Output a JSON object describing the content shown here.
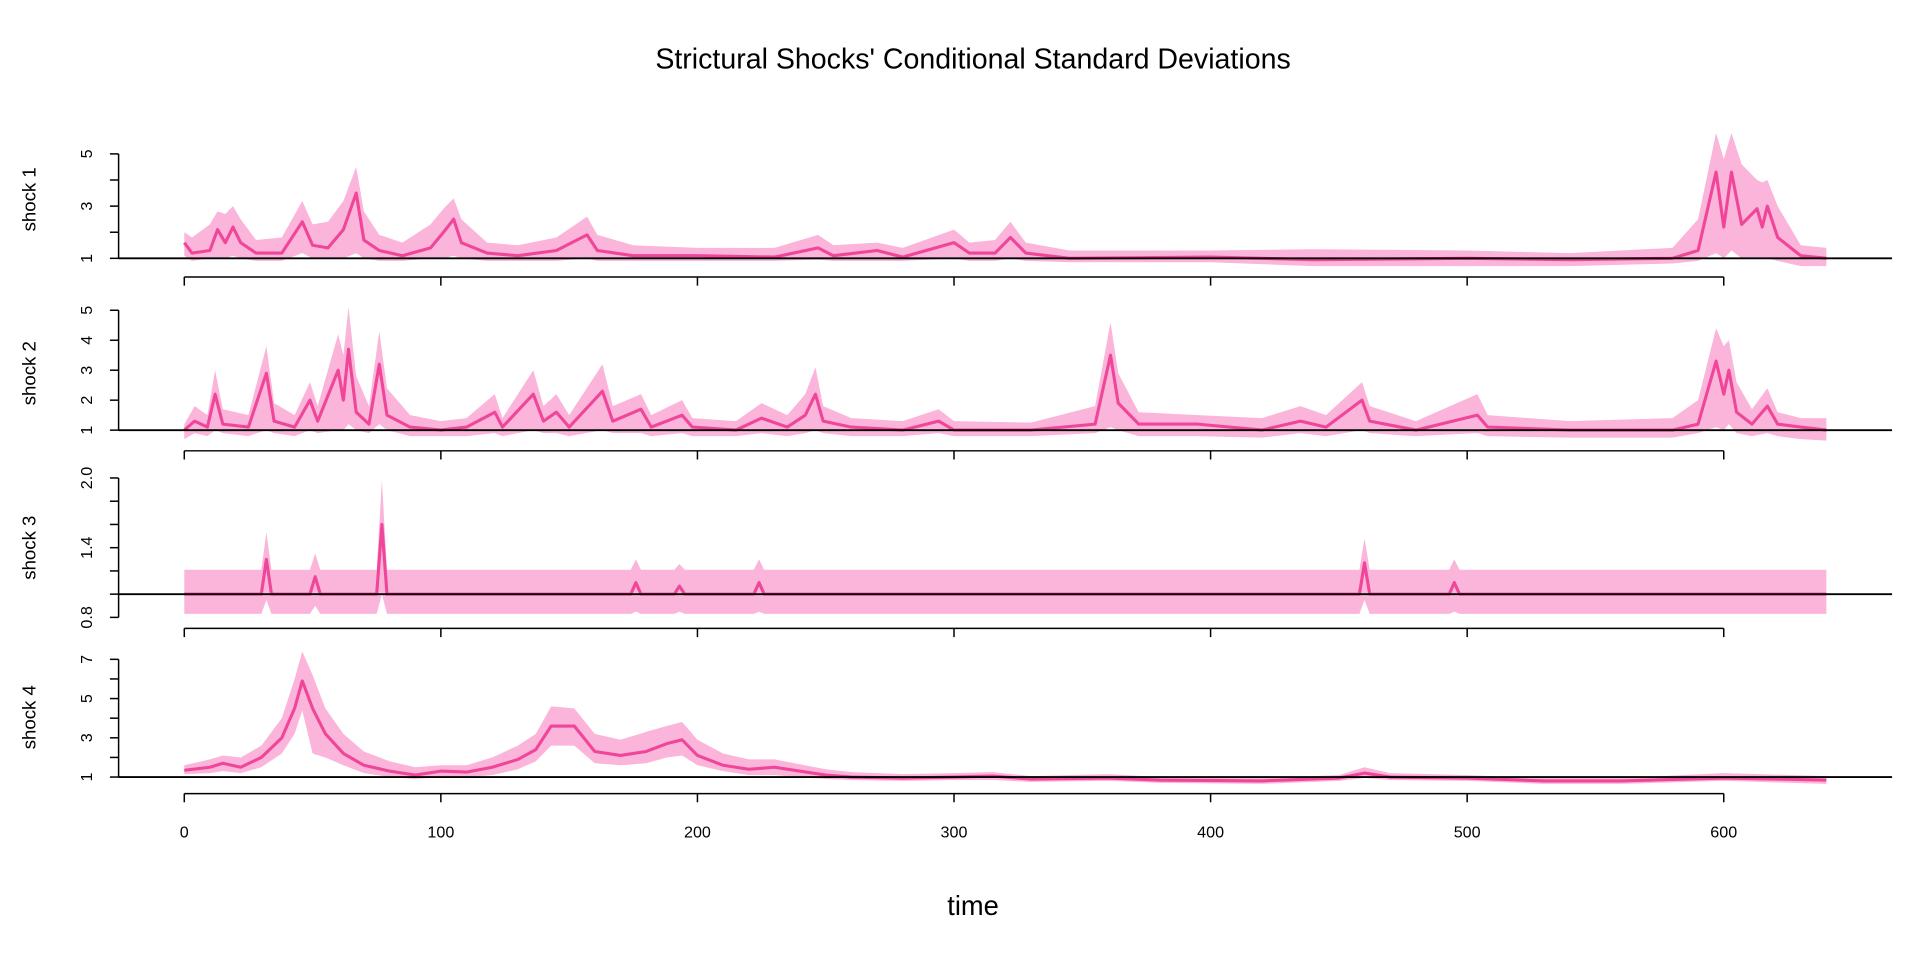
{
  "chart_data": [
    {
      "type": "line",
      "title": "Strictural Shocks' Conditional Standard Deviations",
      "ylabel": "shock 1",
      "x": [
        0,
        3,
        10,
        13,
        16,
        19,
        22,
        28,
        38,
        46,
        50,
        56,
        62,
        67,
        70,
        76,
        85,
        96,
        101,
        105,
        108,
        118,
        130,
        145,
        157,
        161,
        175,
        200,
        230,
        247,
        253,
        270,
        280,
        300,
        306,
        316,
        322,
        328,
        345,
        400,
        440,
        500,
        540,
        580,
        590,
        597,
        600,
        603,
        607,
        613,
        615,
        617,
        621,
        630,
        640
      ],
      "series": [
        {
          "color": "#f0469a",
          "band_color": "#fbb4da",
          "values": [
            1.6,
            1.2,
            1.3,
            2.1,
            1.6,
            2.2,
            1.6,
            1.2,
            1.2,
            2.4,
            1.5,
            1.4,
            2.1,
            3.5,
            1.7,
            1.3,
            1.1,
            1.4,
            2.0,
            2.5,
            1.6,
            1.2,
            1.1,
            1.3,
            1.9,
            1.3,
            1.1,
            1.1,
            1.05,
            1.4,
            1.1,
            1.3,
            1.05,
            1.6,
            1.2,
            1.2,
            1.8,
            1.2,
            1.0,
            1.05,
            0.95,
            1.0,
            0.95,
            1.0,
            1.3,
            4.3,
            2.2,
            4.3,
            2.3,
            2.9,
            2.2,
            3.0,
            1.8,
            1.1,
            1.0
          ],
          "lower": [
            1.1,
            0.9,
            1.0,
            1.0,
            1.0,
            1.1,
            1.0,
            0.9,
            0.9,
            1.2,
            1.0,
            1.0,
            1.0,
            1.2,
            1.0,
            0.9,
            0.9,
            1.0,
            1.0,
            1.1,
            1.0,
            0.9,
            0.9,
            0.9,
            1.0,
            0.9,
            0.9,
            0.9,
            0.9,
            0.95,
            0.9,
            0.9,
            0.9,
            1.0,
            0.9,
            0.9,
            1.0,
            0.9,
            0.85,
            0.85,
            0.7,
            0.7,
            0.7,
            0.8,
            0.9,
            1.2,
            1.0,
            1.3,
            1.0,
            1.0,
            1.0,
            1.0,
            0.9,
            0.7,
            0.7
          ],
          "upper": [
            2.0,
            1.8,
            2.3,
            2.8,
            2.7,
            3.0,
            2.5,
            1.7,
            1.8,
            3.2,
            2.3,
            2.4,
            3.2,
            4.5,
            2.8,
            1.9,
            1.6,
            2.3,
            2.9,
            3.3,
            2.5,
            1.6,
            1.5,
            1.8,
            2.6,
            1.9,
            1.5,
            1.4,
            1.4,
            1.9,
            1.5,
            1.6,
            1.4,
            2.1,
            1.6,
            1.7,
            2.4,
            1.6,
            1.3,
            1.3,
            1.35,
            1.3,
            1.2,
            1.4,
            2.5,
            5.8,
            4.8,
            5.8,
            4.6,
            4.0,
            3.9,
            4.0,
            3.0,
            1.5,
            1.4
          ]
        }
      ],
      "xlim": [
        -25.6,
        665.6
      ],
      "xticks": [
        0,
        100,
        200,
        300,
        400,
        500,
        600
      ],
      "ylim": [
        0.62,
        5.9
      ],
      "yticks": [
        1,
        3,
        5
      ],
      "minor_yticks": [
        2,
        4
      ],
      "hline": 1
    },
    {
      "type": "line",
      "ylabel": "shock 2",
      "x": [
        0,
        4,
        9,
        12,
        15,
        25,
        32,
        35,
        43,
        49,
        52,
        60,
        62,
        64,
        67,
        72,
        76,
        79,
        88,
        100,
        110,
        121,
        124,
        136,
        140,
        145,
        150,
        163,
        167,
        178,
        182,
        194,
        198,
        215,
        225,
        235,
        242,
        246,
        249,
        260,
        280,
        294,
        300,
        330,
        355,
        361,
        364,
        372,
        395,
        420,
        435,
        445,
        459,
        462,
        480,
        504,
        508,
        540,
        580,
        590,
        597,
        600,
        602,
        605,
        611,
        617,
        621,
        630,
        640
      ],
      "series": [
        {
          "color": "#f0469a",
          "band_color": "#fbb4da",
          "values": [
            1.0,
            1.3,
            1.1,
            2.2,
            1.2,
            1.1,
            2.9,
            1.3,
            1.1,
            2.0,
            1.3,
            3.0,
            2.0,
            3.7,
            1.6,
            1.2,
            3.2,
            1.5,
            1.1,
            1.0,
            1.1,
            1.6,
            1.1,
            2.2,
            1.3,
            1.6,
            1.1,
            2.3,
            1.3,
            1.7,
            1.1,
            1.5,
            1.1,
            1.0,
            1.4,
            1.1,
            1.5,
            2.2,
            1.3,
            1.1,
            1.0,
            1.3,
            1.0,
            1.0,
            1.2,
            3.5,
            1.9,
            1.2,
            1.2,
            1.0,
            1.3,
            1.1,
            2.0,
            1.3,
            1.0,
            1.5,
            1.1,
            1.0,
            1.0,
            1.2,
            3.3,
            2.2,
            3.0,
            1.6,
            1.2,
            1.8,
            1.2,
            1.1,
            1.0
          ],
          "lower": [
            0.7,
            0.9,
            0.8,
            1.0,
            0.9,
            0.8,
            1.0,
            0.9,
            0.8,
            1.0,
            0.9,
            1.0,
            1.0,
            1.2,
            1.0,
            0.9,
            1.2,
            1.0,
            0.8,
            0.8,
            0.8,
            0.9,
            0.8,
            1.0,
            0.9,
            0.9,
            0.8,
            1.0,
            0.9,
            0.9,
            0.8,
            0.9,
            0.8,
            0.8,
            0.9,
            0.8,
            0.9,
            1.0,
            0.9,
            0.8,
            0.8,
            0.9,
            0.8,
            0.8,
            0.9,
            1.1,
            1.0,
            0.8,
            0.8,
            0.75,
            0.9,
            0.8,
            1.0,
            0.9,
            0.8,
            0.9,
            0.8,
            0.75,
            0.75,
            0.9,
            1.1,
            1.0,
            1.2,
            0.9,
            0.8,
            0.9,
            0.8,
            0.7,
            0.65
          ],
          "upper": [
            1.2,
            1.8,
            1.5,
            3.0,
            1.7,
            1.5,
            3.8,
            1.9,
            1.5,
            2.6,
            1.8,
            4.2,
            3.5,
            5.1,
            2.8,
            1.8,
            4.3,
            2.4,
            1.5,
            1.3,
            1.4,
            2.2,
            1.4,
            3.0,
            1.8,
            2.2,
            1.5,
            3.2,
            1.8,
            2.2,
            1.5,
            2.0,
            1.4,
            1.3,
            1.9,
            1.5,
            2.2,
            3.1,
            1.8,
            1.4,
            1.3,
            1.7,
            1.3,
            1.25,
            1.8,
            4.6,
            2.9,
            1.6,
            1.5,
            1.4,
            1.8,
            1.5,
            2.6,
            1.8,
            1.3,
            2.2,
            1.5,
            1.3,
            1.4,
            2.0,
            4.4,
            3.8,
            4.0,
            2.6,
            1.7,
            2.4,
            1.6,
            1.4,
            1.4
          ]
        }
      ],
      "xlim": [
        -25.6,
        665.6
      ],
      "xticks": [
        0,
        100,
        200,
        300,
        400,
        500,
        600
      ],
      "ylim": [
        0.6,
        5.2
      ],
      "yticks": [
        1,
        2,
        3,
        4,
        5
      ],
      "minor_yticks": [],
      "hline": 1
    },
    {
      "type": "line",
      "ylabel": "shock 3",
      "x": [
        0,
        30,
        32,
        34,
        49,
        51,
        53,
        75,
        77,
        79,
        174,
        176,
        178,
        191,
        193,
        195,
        222,
        224,
        226,
        458,
        460,
        462,
        493,
        495,
        497,
        640
      ],
      "series": [
        {
          "color": "#f0469a",
          "band_color": "#fbb4da",
          "values": [
            1.0,
            1.0,
            1.3,
            1.0,
            1.0,
            1.15,
            1.0,
            1.0,
            1.6,
            1.0,
            1.0,
            1.1,
            1.0,
            1.0,
            1.07,
            1.0,
            1.0,
            1.1,
            1.0,
            1.0,
            1.27,
            1.0,
            1.0,
            1.1,
            1.0,
            1.0
          ],
          "lower": [
            0.83,
            0.83,
            0.95,
            0.83,
            0.83,
            0.9,
            0.83,
            0.83,
            1.0,
            0.83,
            0.83,
            0.85,
            0.83,
            0.83,
            0.85,
            0.83,
            0.83,
            0.85,
            0.83,
            0.83,
            0.95,
            0.83,
            0.83,
            0.85,
            0.83,
            0.83
          ],
          "upper": [
            1.21,
            1.21,
            1.53,
            1.21,
            1.21,
            1.35,
            1.21,
            1.21,
            1.98,
            1.21,
            1.21,
            1.3,
            1.21,
            1.21,
            1.26,
            1.21,
            1.21,
            1.3,
            1.21,
            1.21,
            1.48,
            1.21,
            1.21,
            1.3,
            1.21,
            1.21
          ]
        }
      ],
      "xlim": [
        -25.6,
        665.6
      ],
      "xticks": [
        0,
        100,
        200,
        300,
        400,
        500,
        600
      ],
      "ylim": [
        0.78,
        2.02
      ],
      "yticks": [
        {
          "value": 0.8,
          "label": "0.8"
        },
        {
          "value": 1.4,
          "label": "1.4"
        },
        {
          "value": 2.0,
          "label": "2.0"
        }
      ],
      "minor_yticks": [
        1.0,
        1.2,
        1.6,
        1.8
      ],
      "hline": 1
    },
    {
      "type": "line",
      "ylabel": "shock 4",
      "xlabel": "time",
      "xtick_labels": true,
      "x": [
        0,
        10,
        15,
        22,
        30,
        38,
        43,
        46,
        50,
        55,
        62,
        70,
        80,
        90,
        100,
        110,
        120,
        130,
        137,
        143,
        152,
        160,
        170,
        180,
        188,
        194,
        200,
        210,
        220,
        230,
        250,
        260,
        280,
        300,
        315,
        330,
        360,
        380,
        420,
        450,
        460,
        470,
        500,
        530,
        560,
        600,
        640
      ],
      "series": [
        {
          "color": "#f0469a",
          "band_color": "#fbb4da",
          "values": [
            1.35,
            1.5,
            1.7,
            1.5,
            2.0,
            3.0,
            4.5,
            5.9,
            4.5,
            3.2,
            2.2,
            1.6,
            1.3,
            1.1,
            1.3,
            1.25,
            1.5,
            1.9,
            2.4,
            3.6,
            3.6,
            2.3,
            2.1,
            2.3,
            2.7,
            2.9,
            2.1,
            1.6,
            1.4,
            1.5,
            1.1,
            1.0,
            0.95,
            1.0,
            1.05,
            0.9,
            0.95,
            0.85,
            0.8,
            0.95,
            1.2,
            1.0,
            0.95,
            0.8,
            0.8,
            0.95,
            0.85
          ],
          "lower": [
            1.15,
            1.2,
            1.3,
            1.2,
            1.5,
            2.2,
            3.2,
            4.4,
            2.2,
            2.0,
            1.6,
            1.2,
            1.0,
            0.9,
            1.0,
            1.0,
            1.1,
            1.4,
            1.8,
            2.6,
            2.6,
            1.7,
            1.6,
            1.7,
            2.0,
            2.1,
            1.6,
            1.3,
            1.1,
            1.1,
            0.9,
            0.85,
            0.8,
            0.85,
            0.85,
            0.75,
            0.8,
            0.7,
            0.65,
            0.8,
            0.95,
            0.85,
            0.8,
            0.65,
            0.65,
            0.8,
            0.65
          ],
          "upper": [
            1.6,
            1.9,
            2.1,
            2.0,
            2.6,
            4.0,
            6.0,
            7.4,
            6.2,
            4.5,
            3.2,
            2.3,
            1.8,
            1.5,
            1.6,
            1.6,
            2.0,
            2.6,
            3.2,
            4.6,
            4.5,
            3.2,
            2.9,
            3.3,
            3.6,
            3.8,
            2.9,
            2.2,
            1.9,
            1.9,
            1.4,
            1.25,
            1.15,
            1.2,
            1.25,
            1.05,
            1.15,
            1.0,
            0.95,
            1.1,
            1.5,
            1.2,
            1.1,
            0.95,
            0.95,
            1.2,
            1.05
          ]
        }
      ],
      "xlim": [
        -25.6,
        665.6
      ],
      "xticks": [
        0,
        100,
        200,
        300,
        400,
        500,
        600
      ],
      "ylim": [
        0.6,
        7.5
      ],
      "yticks": [
        1,
        3,
        5,
        7
      ],
      "minor_yticks": [
        2,
        4,
        6
      ],
      "hline": 1
    }
  ]
}
